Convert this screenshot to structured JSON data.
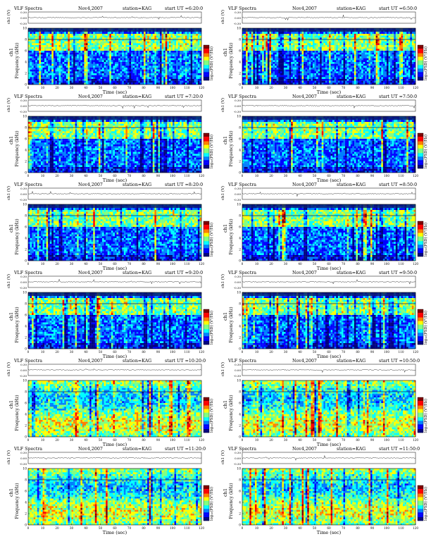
{
  "figure": {
    "panels": [
      {
        "title": "VLF Spectra",
        "date": "Nov4,2007",
        "station": "station=KAG",
        "start": "start  UT =6:20:0"
      },
      {
        "title": "VLF Spectra",
        "date": "Nov4,2007",
        "station": "station=KAG",
        "start": "start  UT =6:50:0"
      },
      {
        "title": "VLF Spectra",
        "date": "Nov4,2007",
        "station": "station=KAG",
        "start": "start  UT =7:20:0"
      },
      {
        "title": "VLF Spectra",
        "date": "Nov4,2007",
        "station": "station=KAG",
        "start": "start  UT =7:50:0"
      },
      {
        "title": "VLF Spectra",
        "date": "Nov4,2007",
        "station": "station=KAG",
        "start": "start  UT =8:20:0"
      },
      {
        "title": "VLF Spectra",
        "date": "Nov4,2007",
        "station": "station=KAG",
        "start": "start  UT =8:50:0"
      },
      {
        "title": "VLF Spectra",
        "date": "Nov4,2007",
        "station": "station=KAG",
        "start": "start  UT =9:20:0"
      },
      {
        "title": "VLF Spectra",
        "date": "Nov4,2007",
        "station": "station=KAG",
        "start": "start  UT =9:50:0"
      },
      {
        "title": "VLF Spectra",
        "date": "Nov4,2007",
        "station": "station=KAG",
        "start": "start  UT =10:20:0"
      },
      {
        "title": "VLF Spectra",
        "date": "Nov4,2007",
        "station": "station=KAG",
        "start": "start  UT =10:50:0"
      },
      {
        "title": "VLF Spectra",
        "date": "Nov4,2007",
        "station": "station=KAG",
        "start": "start  UT =11:20:0"
      },
      {
        "title": "VLF Spectra",
        "date": "Nov4,2007",
        "station": "station=KAG",
        "start": "start  UT =11:50:0"
      }
    ]
  },
  "chart_data": {
    "type": "heatmap",
    "grid": "2 columns x 6 rows",
    "panel_count": 12,
    "xlabel": "Time  (sec)",
    "ylabel": "Frequency  (kHz)",
    "channel_label": "ch1",
    "waveform_ylabel": "ch1 (V)",
    "waveform_ticks": [
      "0.30",
      "0.00",
      "-0.30"
    ],
    "waveform_range": [
      -0.3,
      0.3
    ],
    "xlim": [
      0,
      120
    ],
    "xticks": [
      0,
      10,
      20,
      30,
      40,
      50,
      60,
      70,
      80,
      90,
      100,
      110,
      120
    ],
    "ylim": [
      0,
      10
    ],
    "yticks": [
      0,
      2,
      4,
      6,
      8,
      10
    ],
    "colorbar_label": "log₁₀(PSD) (V²/Hz)",
    "colormap": [
      "#00007f",
      "#0000ff",
      "#007fff",
      "#00ffff",
      "#7fff7f",
      "#ffff00",
      "#ff7f00",
      "#ff0000",
      "#7f0000"
    ],
    "accent_line_color": "#0a1a6e"
  }
}
